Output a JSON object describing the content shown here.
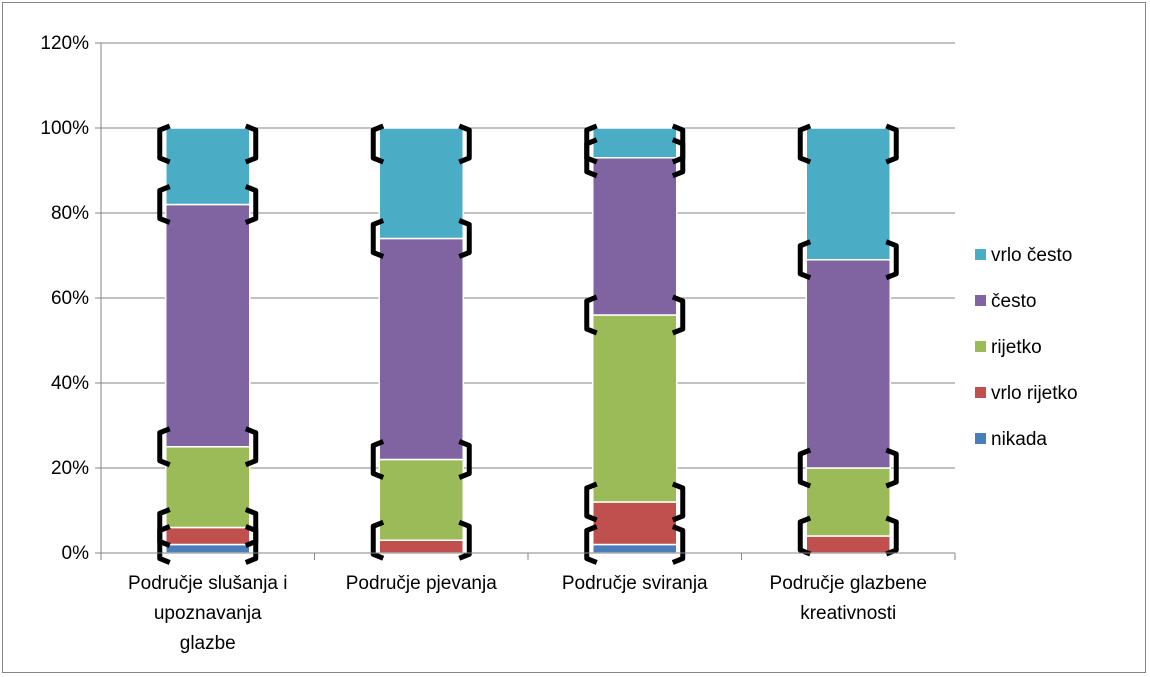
{
  "chart_data": {
    "type": "bar",
    "stacked": true,
    "categories": [
      [
        "Područje slušanja i",
        "upoznavanja",
        "glazbe"
      ],
      [
        "Područje pjevanja"
      ],
      [
        "Područje sviranja"
      ],
      [
        "Područje glazbene",
        "kreativnosti"
      ]
    ],
    "series": [
      {
        "name": "nikada",
        "color": "#4a7ebb",
        "values": [
          2,
          0,
          2,
          0
        ]
      },
      {
        "name": "vrlo rijetko",
        "color": "#c0504d",
        "values": [
          4,
          3,
          10,
          4
        ]
      },
      {
        "name": "rijetko",
        "color": "#9bbb59",
        "values": [
          19,
          19,
          44,
          16
        ]
      },
      {
        "name": "često",
        "color": "#8064a2",
        "values": [
          57,
          52,
          37,
          49
        ]
      },
      {
        "name": "vrlo često",
        "color": "#4bacc6",
        "values": [
          18,
          26,
          7,
          31
        ]
      }
    ],
    "ylim": [
      0,
      120
    ],
    "yticks": [
      "0%",
      "20%",
      "40%",
      "60%",
      "80%",
      "100%",
      "120%"
    ],
    "grid": true,
    "legend_position": "right",
    "error_bars": true
  }
}
